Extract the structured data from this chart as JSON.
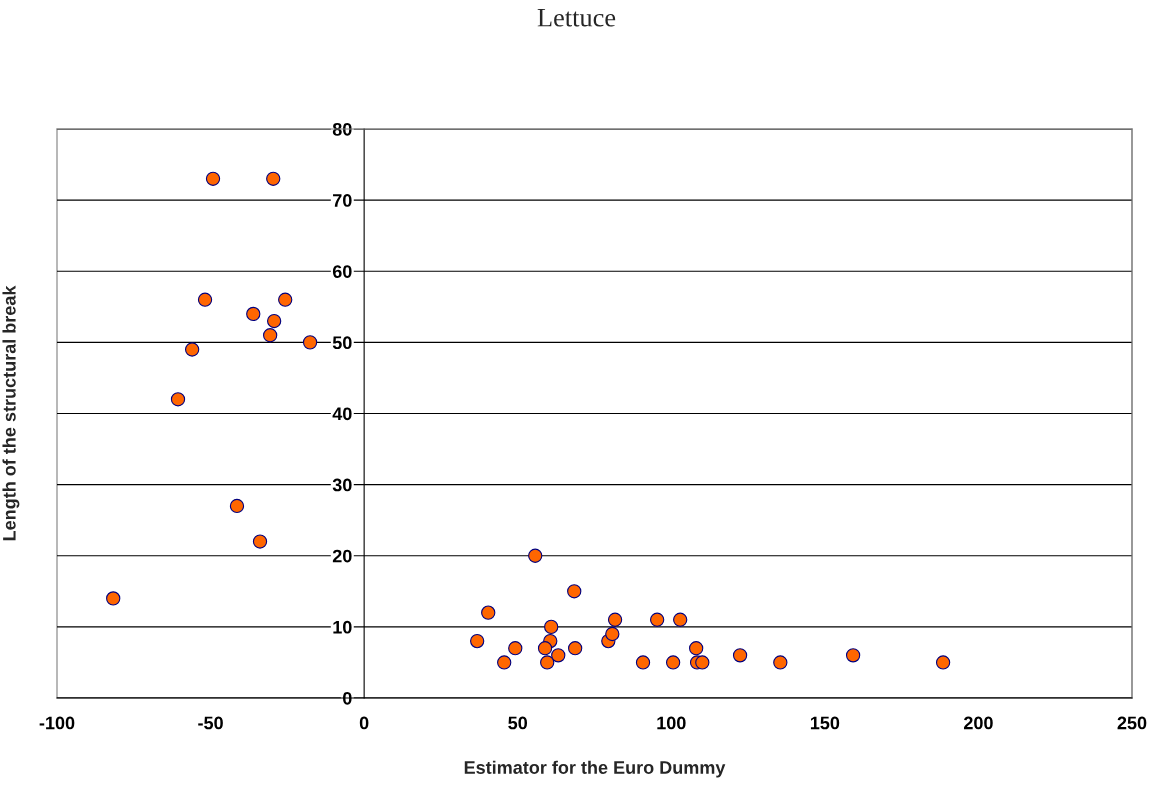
{
  "chart_data": {
    "type": "scatter",
    "title": "Lettuce",
    "xlabel": "Estimator for the Euro Dummy",
    "ylabel": "Length of the structural break",
    "x": [
      -49.2,
      -29.6,
      -51.8,
      -25.7,
      -36.1,
      -29.3,
      -30.6,
      -17.6,
      -56,
      -60.6,
      -41.4,
      -33.9,
      -81.7,
      55.7,
      68.4,
      40.4,
      81.7,
      95.4,
      102.9,
      60.9,
      36.8,
      60.6,
      79.5,
      80.8,
      49.2,
      58.9,
      68.7,
      108.1,
      63.2,
      122.4,
      159.2,
      45.6,
      59.6,
      90.8,
      100.6,
      108.4,
      110.1,
      135.5,
      188.5
    ],
    "values": [
      73,
      73,
      56,
      56,
      54,
      53,
      51,
      50,
      49,
      42,
      27,
      22,
      14,
      20,
      15,
      12,
      11,
      11,
      11,
      10,
      8,
      8,
      8,
      9,
      7,
      7,
      7,
      7,
      6,
      6,
      6,
      5,
      5,
      5,
      5,
      5,
      5,
      5,
      5
    ],
    "color": "#ff6600",
    "marker": "circle",
    "grid": "y",
    "xlim": [
      -100,
      250
    ],
    "xticks": [
      -100,
      -50,
      0,
      50,
      100,
      150,
      200,
      250
    ],
    "ylim": [
      0,
      80
    ],
    "yticks": [
      0,
      10,
      20,
      30,
      40,
      50,
      60,
      70,
      80
    ]
  }
}
